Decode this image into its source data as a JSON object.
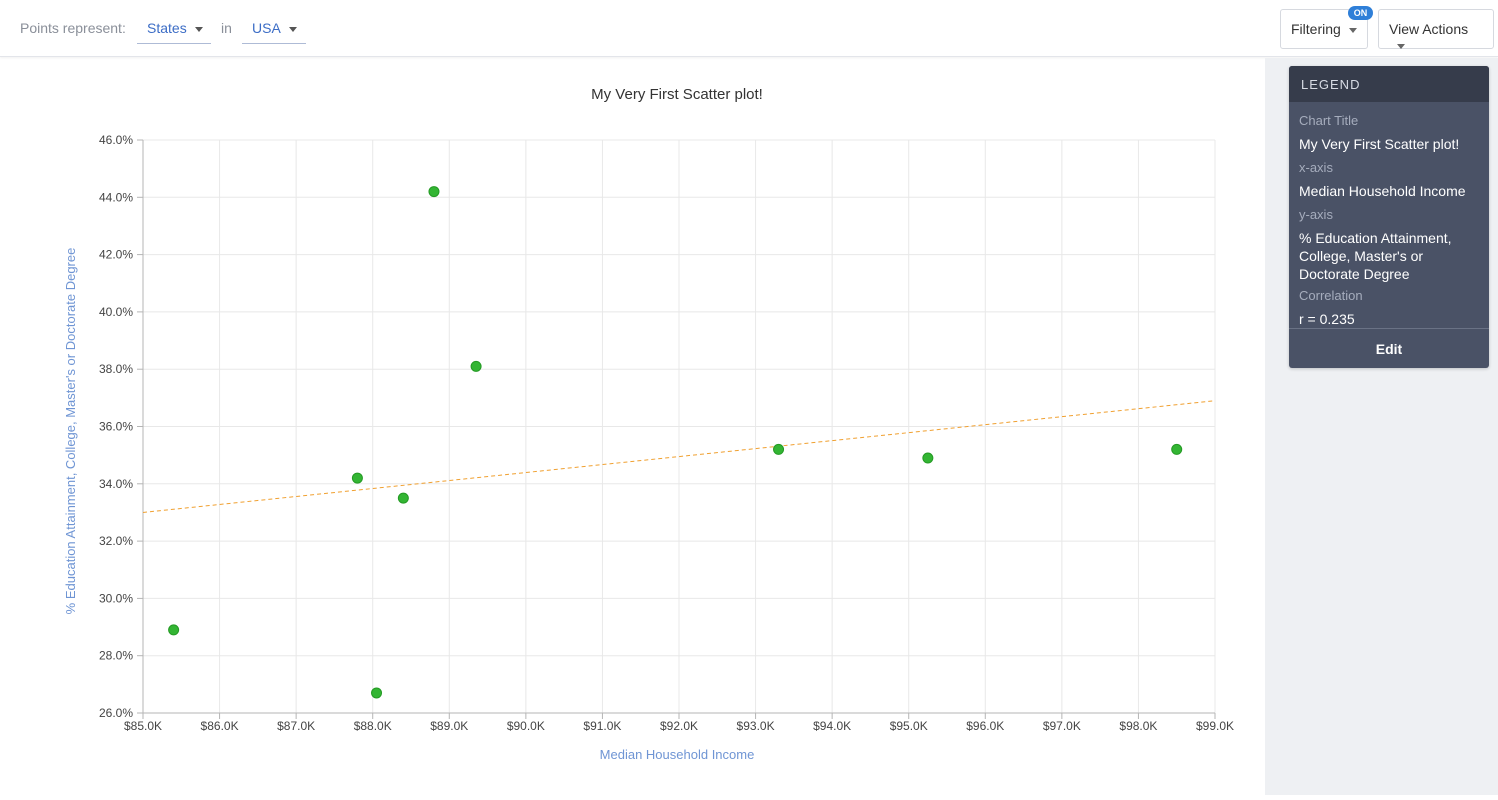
{
  "toolbar": {
    "points_label": "Points represent:",
    "points_value": "States",
    "in_label": "in",
    "region_value": "USA",
    "filtering_label": "Filtering",
    "filtering_badge": "ON",
    "view_actions_label": "View Actions"
  },
  "legend": {
    "header": "LEGEND",
    "chart_title_key": "Chart Title",
    "chart_title_value": "My Very First Scatter plot!",
    "x_axis_key": "x-axis",
    "x_axis_value": "Median Household Income",
    "y_axis_key": "y-axis",
    "y_axis_value_lines": [
      "% Education Attainment,",
      "College, Master's or",
      "Doctorate Degree"
    ],
    "correlation_key": "Correlation",
    "correlation_value": "r = 0.235",
    "edit_label": "Edit"
  },
  "colors": {
    "point": "#33b533",
    "point_stroke": "#249a24",
    "trendline": "#f0a030",
    "axis_label": "#6f95d4"
  },
  "chart_data": {
    "type": "scatter",
    "title": "My Very First Scatter plot!",
    "xlabel": "Median Household Income",
    "ylabel": "% Education Attainment, College, Master's or Doctorate Degree",
    "xlim": [
      85000,
      99000
    ],
    "ylim": [
      26,
      46
    ],
    "x_ticks": [
      85000,
      86000,
      87000,
      88000,
      89000,
      90000,
      91000,
      92000,
      93000,
      94000,
      95000,
      96000,
      97000,
      98000,
      99000
    ],
    "x_tick_labels": [
      "$85.0K",
      "$86.0K",
      "$87.0K",
      "$88.0K",
      "$89.0K",
      "$90.0K",
      "$91.0K",
      "$92.0K",
      "$93.0K",
      "$94.0K",
      "$95.0K",
      "$96.0K",
      "$97.0K",
      "$98.0K",
      "$99.0K"
    ],
    "y_ticks": [
      26,
      28,
      30,
      32,
      34,
      36,
      38,
      40,
      42,
      44,
      46
    ],
    "y_tick_labels": [
      "26.0%",
      "28.0%",
      "30.0%",
      "32.0%",
      "34.0%",
      "36.0%",
      "38.0%",
      "40.0%",
      "42.0%",
      "44.0%",
      "46.0%"
    ],
    "grid": true,
    "points": [
      {
        "x": 85400,
        "y": 28.9
      },
      {
        "x": 87800,
        "y": 34.2
      },
      {
        "x": 88050,
        "y": 26.7
      },
      {
        "x": 88400,
        "y": 33.5
      },
      {
        "x": 88800,
        "y": 44.2
      },
      {
        "x": 89350,
        "y": 38.1
      },
      {
        "x": 93300,
        "y": 35.2
      },
      {
        "x": 95250,
        "y": 34.9
      },
      {
        "x": 98500,
        "y": 35.2
      }
    ],
    "trendline": {
      "x": [
        85000,
        99000
      ],
      "y": [
        33.0,
        36.9
      ]
    },
    "correlation": 0.235
  }
}
